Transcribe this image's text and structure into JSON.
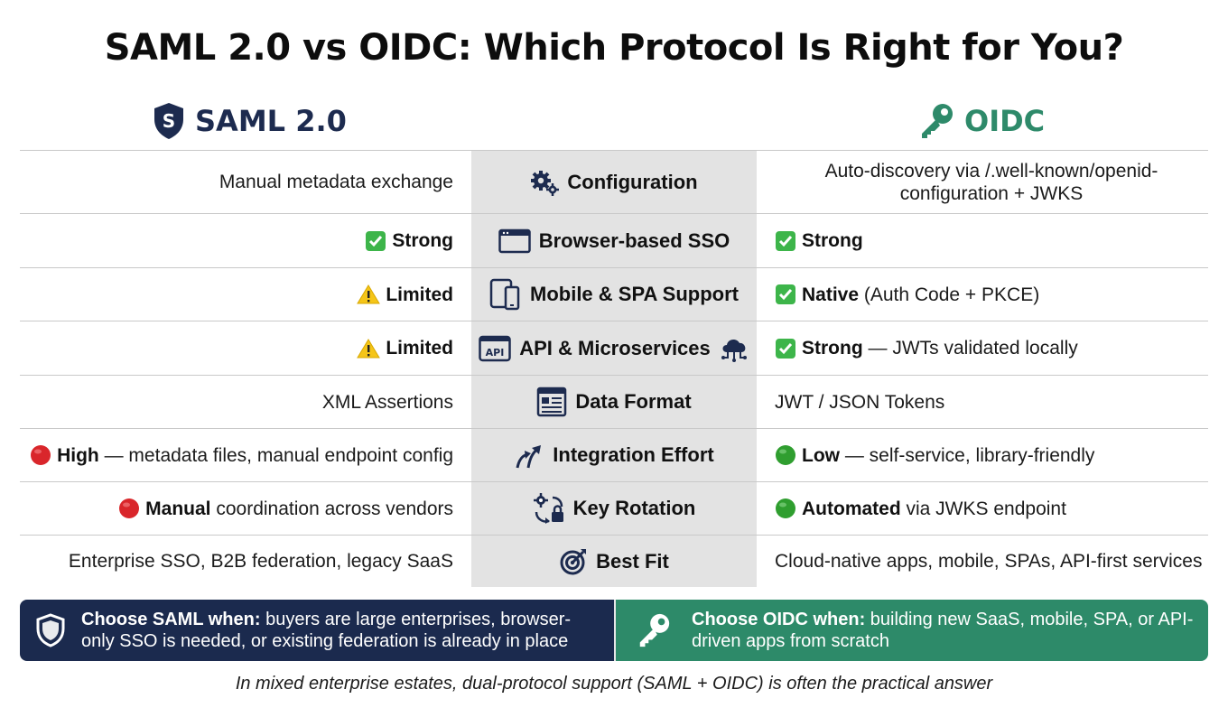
{
  "title": "SAML 2.0 vs OIDC: Which Protocol Is Right for You?",
  "columns": {
    "left": {
      "label": "SAML 2.0",
      "icon": "shield-icon",
      "color": "#1d2b4f"
    },
    "right": {
      "label": "OIDC",
      "icon": "key-icon",
      "color": "#2e8a6a"
    }
  },
  "rows": [
    {
      "feature": "Configuration",
      "icon": "gears-icon",
      "saml": {
        "status": "",
        "strong": "",
        "text": "Manual metadata exchange"
      },
      "oidc": {
        "status": "",
        "strong": "",
        "text": "Auto-discovery via /.well-known/openid-configuration + JWKS"
      }
    },
    {
      "feature": "Browser-based SSO",
      "icon": "browser-window-icon",
      "saml": {
        "status": "check",
        "strong": "Strong",
        "text": ""
      },
      "oidc": {
        "status": "check",
        "strong": "Strong",
        "text": ""
      }
    },
    {
      "feature": "Mobile & SPA Support",
      "icon": "mobile-devices-icon",
      "saml": {
        "status": "warning",
        "strong": "Limited",
        "text": ""
      },
      "oidc": {
        "status": "check",
        "strong": "Native",
        "text": " (Auth Code + PKCE)"
      }
    },
    {
      "feature": "API & Microservices",
      "icon": "api-icon",
      "saml": {
        "status": "warning",
        "strong": "Limited",
        "text": ""
      },
      "oidc": {
        "status": "check",
        "strong": "Strong",
        "text": " — JWTs validated locally"
      }
    },
    {
      "feature": "Data Format",
      "icon": "document-format-icon",
      "saml": {
        "status": "",
        "strong": "",
        "text": "XML Assertions"
      },
      "oidc": {
        "status": "",
        "strong": "",
        "text": "JWT / JSON Tokens"
      }
    },
    {
      "feature": "Integration Effort",
      "icon": "arrows-icon",
      "saml": {
        "status": "red",
        "strong": "High",
        "text": " — metadata files, manual endpoint config"
      },
      "oidc": {
        "status": "green",
        "strong": "Low",
        "text": " — self-service, library-friendly"
      }
    },
    {
      "feature": "Key Rotation",
      "icon": "key-rotation-icon",
      "saml": {
        "status": "red",
        "strong": "Manual",
        "text": " coordination across vendors"
      },
      "oidc": {
        "status": "green",
        "strong": "Automated",
        "text": " via JWKS endpoint"
      }
    },
    {
      "feature": "Best Fit",
      "icon": "target-icon",
      "saml": {
        "status": "",
        "strong": "",
        "text": "Enterprise SSO, B2B federation, legacy SaaS"
      },
      "oidc": {
        "status": "",
        "strong": "",
        "text": "Cloud-native apps, mobile, SPAs, API-first services"
      }
    }
  ],
  "banners": {
    "saml": {
      "strong": "Choose SAML when:",
      "text": " buyers are large enterprises, browser-only SSO is needed, or existing federation is already in place",
      "color": "#1b2a4e"
    },
    "oidc": {
      "strong": "Choose OIDC when:",
      "text": " building new SaaS, mobile, SPA, or API-driven apps from scratch",
      "color": "#2d8a69"
    }
  },
  "footer": "In mixed enterprise estates, dual-protocol support (SAML + OIDC) is often the practical answer"
}
